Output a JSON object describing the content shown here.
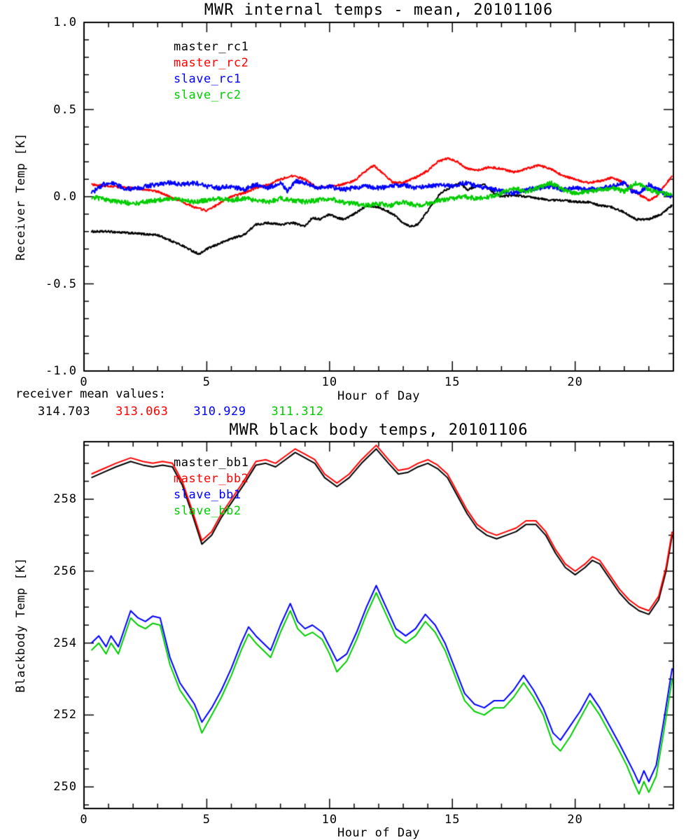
{
  "mean_values": {
    "label": "receiver mean values:",
    "values": [
      {
        "text": "314.703",
        "color": "#000000"
      },
      {
        "text": "313.063",
        "color": "#ff0000"
      },
      {
        "text": "310.929",
        "color": "#0000ff"
      },
      {
        "text": "311.312",
        "color": "#00cc00"
      }
    ]
  },
  "chart_data": [
    {
      "type": "line",
      "title": "MWR internal temps - mean, 20101106",
      "xlabel": "Hour of Day",
      "ylabel": "Receiver Temp [K]",
      "xlim": [
        0,
        24
      ],
      "ylim": [
        -1.0,
        1.0
      ],
      "xticks": [
        0,
        5,
        10,
        15,
        20
      ],
      "xtick_labels": [
        "0",
        "5",
        "10",
        "15",
        "20"
      ],
      "yticks": [
        -1.0,
        -0.5,
        0.0,
        0.5,
        1.0
      ],
      "ytick_labels": [
        "-1.0",
        "-0.5",
        "0.0",
        "0.5",
        "1.0"
      ],
      "minor_x": 1,
      "minor_y": 0.1,
      "grid": false,
      "legend_position": "top-left-inside",
      "series": [
        {
          "name": "master_rc1",
          "color": "#000000",
          "noise": 0.006,
          "x": [
            0.3,
            1,
            2,
            3,
            3.5,
            4,
            4.4,
            4.7,
            5,
            5.5,
            6,
            6.5,
            7,
            7.5,
            8,
            8.5,
            9,
            9.3,
            9.6,
            10,
            10.3,
            10.6,
            11,
            11.5,
            12,
            12.3,
            12.6,
            13,
            13.3,
            13.6,
            14,
            14.5,
            15,
            15.3,
            15.6,
            16,
            16.3,
            16.7,
            17,
            17.5,
            18,
            18.5,
            19,
            19.5,
            20,
            20.5,
            21,
            21.5,
            22,
            22.5,
            23,
            23.5,
            23.95
          ],
          "y": [
            -0.2,
            -0.2,
            -0.21,
            -0.22,
            -0.25,
            -0.28,
            -0.31,
            -0.33,
            -0.3,
            -0.27,
            -0.24,
            -0.22,
            -0.16,
            -0.15,
            -0.16,
            -0.15,
            -0.17,
            -0.12,
            -0.13,
            -0.1,
            -0.12,
            -0.13,
            -0.1,
            -0.05,
            -0.06,
            -0.08,
            -0.1,
            -0.15,
            -0.17,
            -0.16,
            -0.08,
            0.02,
            0.06,
            0.08,
            0.04,
            0.06,
            0.07,
            0.02,
            0.0,
            0.01,
            0.0,
            -0.01,
            -0.02,
            -0.02,
            -0.03,
            -0.03,
            -0.05,
            -0.06,
            -0.09,
            -0.13,
            -0.13,
            -0.1,
            -0.05
          ]
        },
        {
          "name": "master_rc2",
          "color": "#ff0000",
          "noise": 0.006,
          "x": [
            0.3,
            1,
            2,
            3,
            3.5,
            4,
            4.5,
            5,
            5.5,
            6,
            6.5,
            7,
            7.5,
            8,
            8.5,
            9,
            9.5,
            10,
            10.5,
            11,
            11.4,
            11.8,
            12.2,
            12.6,
            13,
            13.5,
            14,
            14.4,
            14.8,
            15.2,
            15.6,
            16,
            16.5,
            17,
            17.5,
            18,
            18.5,
            19,
            19.5,
            20,
            20.5,
            21,
            21.5,
            22,
            22.5,
            23,
            23.3,
            23.95
          ],
          "y": [
            0.07,
            0.06,
            0.05,
            0.03,
            0.0,
            -0.03,
            -0.06,
            -0.08,
            -0.04,
            0.0,
            0.02,
            0.05,
            0.07,
            0.1,
            0.12,
            0.1,
            0.05,
            0.06,
            0.07,
            0.09,
            0.14,
            0.18,
            0.13,
            0.08,
            0.08,
            0.11,
            0.15,
            0.2,
            0.22,
            0.2,
            0.16,
            0.15,
            0.17,
            0.16,
            0.14,
            0.16,
            0.18,
            0.16,
            0.12,
            0.1,
            0.08,
            0.09,
            0.11,
            0.08,
            0.02,
            -0.02,
            0.0,
            0.12
          ]
        },
        {
          "name": "slave_rc1",
          "color": "#0000ff",
          "noise": 0.013,
          "x": [
            0.3,
            0.8,
            1.2,
            1.6,
            2,
            2.5,
            3,
            3.5,
            4,
            4.5,
            5,
            5.5,
            6,
            6.5,
            7,
            7.5,
            8,
            8.3,
            8.6,
            9,
            9.5,
            10,
            10.5,
            11,
            11.5,
            12,
            12.5,
            13,
            13.5,
            14,
            14.5,
            15,
            15.5,
            16,
            16.5,
            17,
            17.5,
            18,
            18.5,
            19,
            19.5,
            20,
            20.5,
            21,
            21.5,
            22,
            22.3,
            22.6,
            23,
            23.5,
            23.95
          ],
          "y": [
            0.02,
            0.07,
            0.08,
            0.05,
            0.04,
            0.06,
            0.07,
            0.08,
            0.07,
            0.08,
            0.06,
            0.05,
            0.06,
            0.04,
            0.07,
            0.05,
            0.08,
            0.03,
            0.09,
            0.08,
            0.05,
            0.06,
            0.04,
            0.05,
            0.06,
            0.05,
            0.06,
            0.07,
            0.05,
            0.06,
            0.07,
            0.06,
            0.08,
            0.06,
            0.05,
            0.03,
            0.02,
            0.04,
            0.05,
            0.06,
            0.04,
            0.05,
            0.04,
            0.05,
            0.06,
            0.08,
            0.03,
            0.02,
            0.07,
            0.03,
            0.0
          ]
        },
        {
          "name": "slave_rc2",
          "color": "#00cc00",
          "noise": 0.013,
          "x": [
            0.3,
            1,
            1.5,
            2,
            2.5,
            3,
            3.5,
            4,
            4.5,
            5,
            5.5,
            6,
            6.5,
            7,
            7.5,
            8,
            8.5,
            9,
            9.5,
            10,
            10.5,
            11,
            11.5,
            12,
            12.5,
            13,
            13.5,
            14,
            14.5,
            15,
            15.5,
            16,
            16.5,
            17,
            17.5,
            18,
            18.5,
            19,
            19.5,
            20,
            20.5,
            21,
            21.5,
            22,
            22.5,
            23,
            23.5,
            23.95
          ],
          "y": [
            0.0,
            -0.02,
            -0.03,
            -0.04,
            -0.03,
            -0.02,
            -0.01,
            -0.02,
            -0.03,
            -0.02,
            -0.01,
            -0.02,
            -0.01,
            -0.02,
            -0.03,
            -0.01,
            -0.02,
            -0.03,
            -0.02,
            -0.01,
            -0.03,
            -0.04,
            -0.05,
            -0.04,
            -0.05,
            -0.03,
            -0.05,
            -0.04,
            -0.02,
            -0.01,
            0.0,
            -0.01,
            0.0,
            0.02,
            0.05,
            0.03,
            0.05,
            0.08,
            0.04,
            0.02,
            0.03,
            0.04,
            0.05,
            0.03,
            0.08,
            0.04,
            0.02,
            0.01
          ]
        }
      ]
    },
    {
      "type": "line",
      "title": "MWR black body temps, 20101106",
      "xlabel": "Hour of Day",
      "ylabel": "Blackbody Temp [K]",
      "xlim": [
        0,
        24
      ],
      "ylim": [
        249.4,
        259.6
      ],
      "xticks": [
        0,
        5,
        10,
        15,
        20
      ],
      "xtick_labels": [
        "0",
        "5",
        "10",
        "15",
        "20"
      ],
      "yticks": [
        250,
        252,
        254,
        256,
        258
      ],
      "ytick_labels": [
        "250",
        "252",
        "254",
        "256",
        "258"
      ],
      "minor_x": 1,
      "minor_y": 0.5,
      "grid": false,
      "legend_position": "top-left-inside",
      "series": [
        {
          "name": "master_bb1",
          "color": "#000000",
          "noise": 0,
          "x": [
            0.3,
            0.8,
            1.3,
            1.9,
            2.4,
            2.8,
            3.2,
            3.6,
            4.0,
            4.4,
            4.8,
            5.2,
            5.6,
            6.0,
            6.5,
            7.0,
            7.4,
            7.8,
            8.2,
            8.6,
            9.0,
            9.4,
            9.8,
            10.3,
            10.8,
            11.3,
            11.9,
            12.4,
            12.8,
            13.2,
            13.6,
            14.0,
            14.4,
            14.8,
            15.2,
            15.6,
            16.0,
            16.4,
            16.8,
            17.2,
            17.6,
            18.0,
            18.4,
            18.8,
            19.2,
            19.6,
            20.0,
            20.4,
            20.7,
            21.0,
            21.4,
            21.8,
            22.2,
            22.6,
            23.0,
            23.4,
            23.7,
            23.95
          ],
          "y": [
            258.6,
            258.75,
            258.9,
            259.05,
            258.95,
            258.9,
            258.95,
            258.9,
            258.4,
            257.6,
            256.75,
            257.0,
            257.5,
            257.9,
            258.4,
            258.95,
            259.0,
            258.9,
            259.1,
            259.3,
            259.15,
            259.0,
            258.6,
            258.35,
            258.6,
            259.0,
            259.4,
            259.0,
            258.7,
            258.75,
            258.9,
            259.0,
            258.85,
            258.6,
            258.1,
            257.6,
            257.2,
            257.0,
            256.9,
            257.0,
            257.1,
            257.3,
            257.3,
            257.0,
            256.5,
            256.1,
            255.9,
            256.1,
            256.3,
            256.2,
            255.8,
            255.4,
            255.1,
            254.9,
            254.8,
            255.2,
            256.0,
            257.0
          ]
        },
        {
          "name": "master_bb2",
          "color": "#ff0000",
          "noise": 0,
          "x": [
            0.3,
            0.8,
            1.3,
            1.9,
            2.4,
            2.8,
            3.2,
            3.6,
            4.0,
            4.4,
            4.8,
            5.2,
            5.6,
            6.0,
            6.5,
            7.0,
            7.4,
            7.8,
            8.2,
            8.6,
            9.0,
            9.4,
            9.8,
            10.3,
            10.8,
            11.3,
            11.9,
            12.4,
            12.8,
            13.2,
            13.6,
            14.0,
            14.4,
            14.8,
            15.2,
            15.6,
            16.0,
            16.4,
            16.8,
            17.2,
            17.6,
            18.0,
            18.4,
            18.8,
            19.2,
            19.6,
            20.0,
            20.4,
            20.7,
            21.0,
            21.4,
            21.8,
            22.2,
            22.6,
            23.0,
            23.4,
            23.7,
            23.95
          ],
          "y": [
            258.7,
            258.85,
            259.0,
            259.15,
            259.05,
            259.0,
            259.05,
            259.0,
            258.5,
            257.7,
            256.85,
            257.1,
            257.6,
            258.0,
            258.5,
            259.05,
            259.1,
            259.0,
            259.2,
            259.4,
            259.25,
            259.1,
            258.7,
            258.45,
            258.7,
            259.1,
            259.5,
            259.1,
            258.8,
            258.85,
            259.0,
            259.1,
            258.95,
            258.7,
            258.2,
            257.7,
            257.3,
            257.1,
            257.0,
            257.1,
            257.2,
            257.4,
            257.4,
            257.1,
            256.6,
            256.2,
            256.0,
            256.2,
            256.4,
            256.3,
            255.9,
            255.5,
            255.2,
            255.0,
            254.9,
            255.3,
            256.1,
            257.1
          ]
        },
        {
          "name": "slave_bb1",
          "color": "#0000ff",
          "noise": 0,
          "x": [
            0.3,
            0.6,
            0.9,
            1.1,
            1.4,
            1.9,
            2.2,
            2.5,
            2.8,
            3.1,
            3.5,
            3.9,
            4.2,
            4.5,
            4.8,
            5.2,
            5.6,
            6.0,
            6.4,
            6.7,
            7.0,
            7.3,
            7.6,
            8.0,
            8.4,
            8.7,
            9.0,
            9.3,
            9.7,
            10.0,
            10.3,
            10.7,
            11.1,
            11.5,
            11.9,
            12.3,
            12.7,
            13.1,
            13.5,
            13.9,
            14.3,
            14.7,
            15.1,
            15.5,
            15.9,
            16.3,
            16.7,
            17.1,
            17.5,
            17.9,
            18.3,
            18.7,
            19.1,
            19.4,
            19.8,
            20.2,
            20.6,
            21.0,
            21.4,
            21.8,
            22.1,
            22.4,
            22.6,
            22.8,
            23.0,
            23.3,
            23.6,
            23.95
          ],
          "y": [
            254.0,
            254.2,
            253.9,
            254.2,
            253.9,
            254.9,
            254.7,
            254.6,
            254.75,
            254.7,
            253.6,
            252.9,
            252.6,
            252.3,
            251.8,
            252.2,
            252.7,
            253.3,
            254.0,
            254.45,
            254.2,
            254.0,
            253.8,
            254.5,
            255.1,
            254.6,
            254.4,
            254.5,
            254.3,
            253.9,
            253.5,
            253.7,
            254.3,
            255.0,
            255.6,
            255.0,
            254.4,
            254.2,
            254.4,
            254.8,
            254.5,
            254.0,
            253.3,
            252.6,
            252.3,
            252.2,
            252.4,
            252.4,
            252.7,
            253.1,
            252.7,
            252.2,
            251.5,
            251.3,
            251.7,
            252.1,
            252.6,
            252.2,
            251.7,
            251.2,
            250.8,
            250.4,
            250.1,
            250.45,
            250.15,
            250.6,
            251.8,
            253.3
          ]
        },
        {
          "name": "slave_bb2",
          "color": "#00cc00",
          "noise": 0,
          "x": [
            0.3,
            0.6,
            0.9,
            1.1,
            1.4,
            1.9,
            2.2,
            2.5,
            2.8,
            3.1,
            3.5,
            3.9,
            4.2,
            4.5,
            4.8,
            5.2,
            5.6,
            6.0,
            6.4,
            6.7,
            7.0,
            7.3,
            7.6,
            8.0,
            8.4,
            8.7,
            9.0,
            9.3,
            9.7,
            10.0,
            10.3,
            10.7,
            11.1,
            11.5,
            11.9,
            12.3,
            12.7,
            13.1,
            13.5,
            13.9,
            14.3,
            14.7,
            15.1,
            15.5,
            15.9,
            16.3,
            16.7,
            17.1,
            17.5,
            17.9,
            18.3,
            18.7,
            19.1,
            19.4,
            19.8,
            20.2,
            20.6,
            21.0,
            21.4,
            21.8,
            22.1,
            22.4,
            22.6,
            22.8,
            23.0,
            23.3,
            23.6,
            23.95
          ],
          "y": [
            253.8,
            254.0,
            253.7,
            254.0,
            253.7,
            254.7,
            254.5,
            254.4,
            254.55,
            254.5,
            253.4,
            252.7,
            252.4,
            252.1,
            251.5,
            252.0,
            252.5,
            253.1,
            253.8,
            254.25,
            254.0,
            253.8,
            253.6,
            254.3,
            254.9,
            254.4,
            254.2,
            254.3,
            254.1,
            253.7,
            253.2,
            253.5,
            254.1,
            254.8,
            255.4,
            254.8,
            254.2,
            254.0,
            254.2,
            254.6,
            254.3,
            253.8,
            253.1,
            252.4,
            252.1,
            252.0,
            252.2,
            252.2,
            252.5,
            252.9,
            252.5,
            252.0,
            251.2,
            251.0,
            251.4,
            251.9,
            252.4,
            252.0,
            251.5,
            251.0,
            250.6,
            250.1,
            249.8,
            250.15,
            249.85,
            250.3,
            251.5,
            253.0
          ]
        }
      ]
    }
  ]
}
